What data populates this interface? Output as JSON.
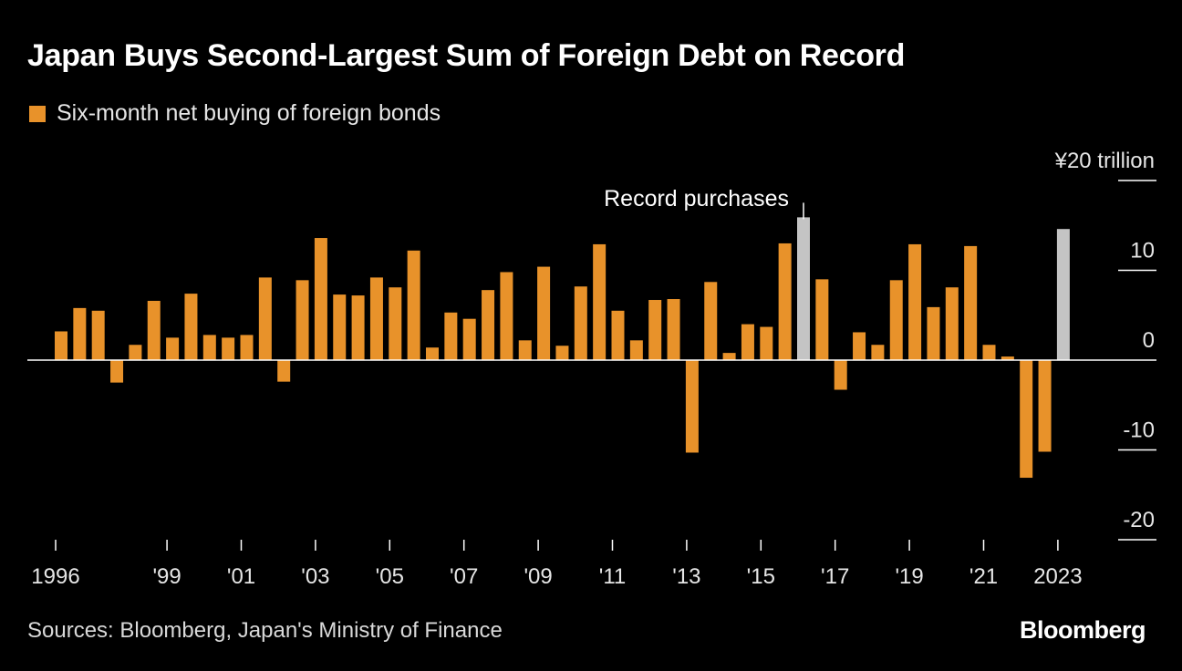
{
  "chart_data": {
    "type": "bar",
    "title": "Japan Buys Second-Largest Sum of Foreign Debt on Record",
    "legend": "Six-month net buying of foreign bonds",
    "y_unit_label": "¥20 trillion",
    "ylim": [
      -20,
      20
    ],
    "y_ticks": [
      20,
      10,
      0,
      -10,
      -20
    ],
    "y_tick_labels": [
      "¥20 trillion",
      "10",
      "0",
      "-10",
      "-20"
    ],
    "x_tick_labels": [
      {
        "label": "1996",
        "index": 0
      },
      {
        "label": "'99",
        "index": 6
      },
      {
        "label": "'01",
        "index": 10
      },
      {
        "label": "'03",
        "index": 14
      },
      {
        "label": "'05",
        "index": 18
      },
      {
        "label": "'07",
        "index": 22
      },
      {
        "label": "'09",
        "index": 26
      },
      {
        "label": "'11",
        "index": 30
      },
      {
        "label": "'13",
        "index": 34
      },
      {
        "label": "'15",
        "index": 38
      },
      {
        "label": "'17",
        "index": 42
      },
      {
        "label": "'19",
        "index": 46
      },
      {
        "label": "'21",
        "index": 50
      },
      {
        "label": "2023",
        "index": 54
      }
    ],
    "tick_marks": [
      0,
      6,
      10,
      14,
      18,
      22,
      26,
      30,
      34,
      38,
      42,
      46,
      50,
      54
    ],
    "values": [
      3.2,
      5.8,
      5.5,
      -2.5,
      1.7,
      6.6,
      2.5,
      7.4,
      2.8,
      2.5,
      2.8,
      9.2,
      -2.4,
      8.9,
      13.6,
      7.3,
      7.2,
      9.2,
      8.1,
      12.2,
      1.4,
      5.3,
      4.6,
      7.8,
      9.8,
      2.2,
      10.4,
      1.6,
      8.2,
      12.9,
      5.5,
      2.2,
      6.7,
      6.8,
      -10.3,
      8.7,
      0.8,
      4.0,
      3.7,
      13.0,
      15.9,
      9.0,
      -3.3,
      3.1,
      1.7,
      8.9,
      12.9,
      5.9,
      8.1,
      12.7,
      1.7,
      0.4,
      -13.1,
      -10.2,
      14.6
    ],
    "highlight_indices": [
      40,
      54
    ],
    "colors": {
      "bar": "#e8922a",
      "highlight": "#c4c4c4",
      "background": "#000000",
      "axis": "#ffffff"
    },
    "annotation": {
      "text": "Record purchases",
      "index": 40
    }
  },
  "footer": {
    "source": "Sources: Bloomberg, Japan's Ministry of Finance",
    "logo": "Bloomberg"
  }
}
